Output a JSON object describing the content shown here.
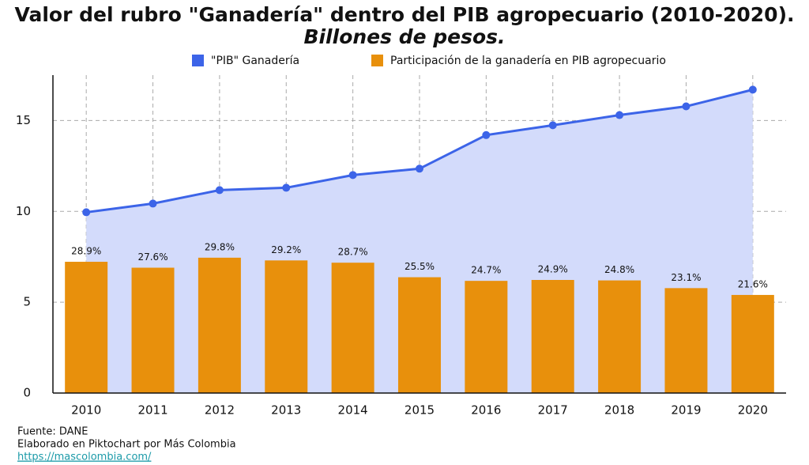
{
  "chart_data": {
    "type": "combo",
    "title": "Valor del rubro \"Ganadería\" dentro del PIB agropecuario (2010-2020).",
    "subtitle": "Billones de pesos.",
    "categories": [
      "2010",
      "2011",
      "2012",
      "2013",
      "2014",
      "2015",
      "2016",
      "2017",
      "2018",
      "2019",
      "2020"
    ],
    "series": [
      {
        "name": "\"PIB\" Ganadería",
        "type": "area",
        "color": "#3c64e8",
        "fill": "#d3dbfb",
        "values": [
          9.95,
          10.43,
          11.17,
          11.3,
          12.0,
          12.35,
          14.2,
          14.74,
          15.3,
          15.78,
          16.7
        ]
      },
      {
        "name": "Participación de la ganadería en PIB agropecuario",
        "type": "bar",
        "axis": "y2",
        "color": "#e8900c",
        "values": [
          28.9,
          27.6,
          29.8,
          29.2,
          28.7,
          25.5,
          24.7,
          24.9,
          24.8,
          23.1,
          21.6
        ],
        "value_labels": [
          "28.9%",
          "27.6%",
          "29.8%",
          "29.2%",
          "28.7%",
          "25.5%",
          "24.7%",
          "24.9%",
          "24.8%",
          "23.1%",
          "21.6%"
        ]
      }
    ],
    "ylim": [
      0,
      17.5
    ],
    "yticks": [
      0,
      5,
      10,
      15
    ],
    "y2lim": [
      0,
      70
    ],
    "grid": true
  },
  "footer": {
    "source": "Fuente: DANE",
    "credit": "Elaborado en Piktochart por Más Colombia",
    "link": "https://mascolombia.com/"
  }
}
